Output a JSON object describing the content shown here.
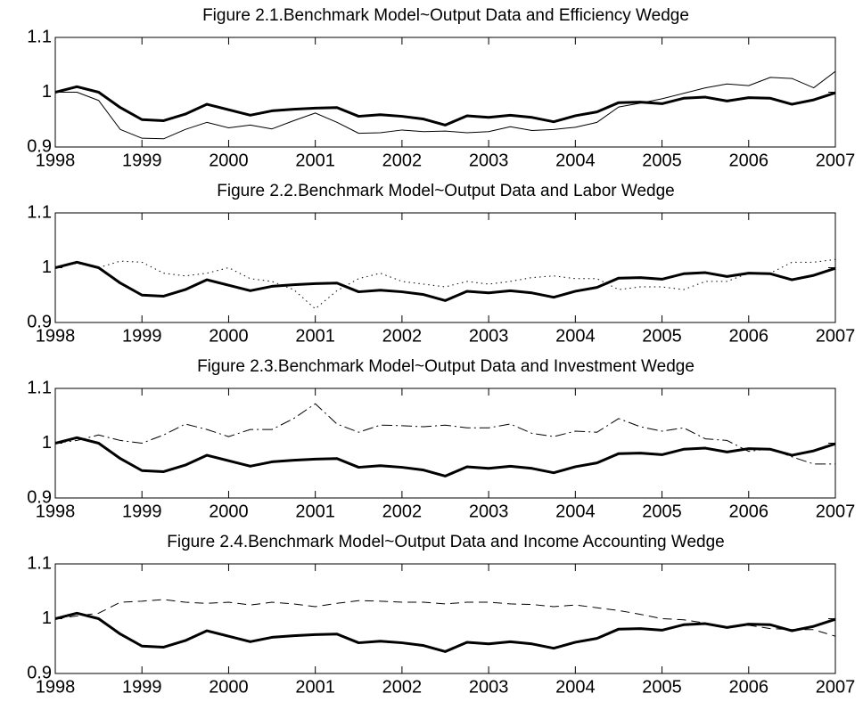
{
  "chart_data": [
    {
      "type": "line",
      "title": "Figure 2.1.Benchmark Model~Output Data and Efficiency Wedge",
      "x": [
        1998,
        1998.25,
        1998.5,
        1998.75,
        1999,
        1999.25,
        1999.5,
        1999.75,
        2000,
        2000.25,
        2000.5,
        2000.75,
        2001,
        2001.25,
        2001.5,
        2001.75,
        2002,
        2002.25,
        2002.5,
        2002.75,
        2003,
        2003.25,
        2003.5,
        2003.75,
        2004,
        2004.25,
        2004.5,
        2004.75,
        2005,
        2005.25,
        2005.5,
        2005.75,
        2006,
        2006.25,
        2006.5,
        2006.75,
        2007
      ],
      "xlim": [
        1998,
        2007
      ],
      "xticks": [
        1998,
        1999,
        2000,
        2001,
        2002,
        2003,
        2004,
        2005,
        2006,
        2007
      ],
      "ylim": [
        0.9,
        1.1
      ],
      "yticks": [
        0.9,
        1,
        1.1
      ],
      "series": [
        {
          "color": "#000000",
          "line_width": 3,
          "style": "solid",
          "values": [
            1.0,
            1.01,
            1.0,
            0.972,
            0.95,
            0.948,
            0.96,
            0.978,
            0.968,
            0.958,
            0.966,
            0.969,
            0.971,
            0.972,
            0.956,
            0.959,
            0.956,
            0.951,
            0.94,
            0.957,
            0.954,
            0.958,
            0.954,
            0.946,
            0.957,
            0.964,
            0.981,
            0.982,
            0.979,
            0.989,
            0.991,
            0.984,
            0.99,
            0.989,
            0.978,
            0.986,
            0.999
          ]
        },
        {
          "color": "#000000",
          "line_width": 1,
          "style": "solid",
          "values": [
            1.0,
            1.0,
            0.985,
            0.932,
            0.916,
            0.915,
            0.932,
            0.945,
            0.935,
            0.94,
            0.933,
            0.948,
            0.962,
            0.945,
            0.925,
            0.926,
            0.931,
            0.928,
            0.929,
            0.926,
            0.928,
            0.937,
            0.93,
            0.932,
            0.936,
            0.945,
            0.973,
            0.98,
            0.988,
            0.998,
            1.008,
            1.015,
            1.012,
            1.027,
            1.025,
            1.008,
            1.038
          ]
        }
      ]
    },
    {
      "type": "line",
      "title": "Figure 2.2.Benchmark Model~Output Data and Labor Wedge",
      "x": [
        1998,
        1998.25,
        1998.5,
        1998.75,
        1999,
        1999.25,
        1999.5,
        1999.75,
        2000,
        2000.25,
        2000.5,
        2000.75,
        2001,
        2001.25,
        2001.5,
        2001.75,
        2002,
        2002.25,
        2002.5,
        2002.75,
        2003,
        2003.25,
        2003.5,
        2003.75,
        2004,
        2004.25,
        2004.5,
        2004.75,
        2005,
        2005.25,
        2005.5,
        2005.75,
        2006,
        2006.25,
        2006.5,
        2006.75,
        2007
      ],
      "xlim": [
        1998,
        2007
      ],
      "xticks": [
        1998,
        1999,
        2000,
        2001,
        2002,
        2003,
        2004,
        2005,
        2006,
        2007
      ],
      "ylim": [
        0.9,
        1.1
      ],
      "yticks": [
        0.9,
        1,
        1.1
      ],
      "series": [
        {
          "color": "#000000",
          "line_width": 3,
          "style": "solid",
          "values": [
            1.0,
            1.01,
            1.0,
            0.972,
            0.95,
            0.948,
            0.96,
            0.978,
            0.968,
            0.958,
            0.966,
            0.969,
            0.971,
            0.972,
            0.956,
            0.959,
            0.956,
            0.951,
            0.94,
            0.957,
            0.954,
            0.958,
            0.954,
            0.946,
            0.957,
            0.964,
            0.981,
            0.982,
            0.979,
            0.989,
            0.991,
            0.984,
            0.99,
            0.989,
            0.978,
            0.986,
            0.999
          ]
        },
        {
          "color": "#000000",
          "line_width": 1,
          "style": "dotted",
          "values": [
            1.0,
            1.008,
            1.0,
            1.012,
            1.01,
            0.99,
            0.985,
            0.99,
            1.0,
            0.98,
            0.975,
            0.96,
            0.925,
            0.958,
            0.98,
            0.99,
            0.975,
            0.97,
            0.965,
            0.975,
            0.97,
            0.975,
            0.982,
            0.985,
            0.98,
            0.98,
            0.96,
            0.965,
            0.965,
            0.96,
            0.975,
            0.975,
            0.99,
            0.99,
            1.01,
            1.01,
            1.015
          ]
        }
      ]
    },
    {
      "type": "line",
      "title": "Figure 2.3.Benchmark Model~Output Data and Investment Wedge",
      "x": [
        1998,
        1998.25,
        1998.5,
        1998.75,
        1999,
        1999.25,
        1999.5,
        1999.75,
        2000,
        2000.25,
        2000.5,
        2000.75,
        2001,
        2001.25,
        2001.5,
        2001.75,
        2002,
        2002.25,
        2002.5,
        2002.75,
        2003,
        2003.25,
        2003.5,
        2003.75,
        2004,
        2004.25,
        2004.5,
        2004.75,
        2005,
        2005.25,
        2005.5,
        2005.75,
        2006,
        2006.25,
        2006.5,
        2006.75,
        2007
      ],
      "xlim": [
        1998,
        2007
      ],
      "xticks": [
        1998,
        1999,
        2000,
        2001,
        2002,
        2003,
        2004,
        2005,
        2006,
        2007
      ],
      "ylim": [
        0.9,
        1.1
      ],
      "yticks": [
        0.9,
        1,
        1.1
      ],
      "series": [
        {
          "color": "#000000",
          "line_width": 3,
          "style": "solid",
          "values": [
            1.0,
            1.01,
            1.0,
            0.972,
            0.95,
            0.948,
            0.96,
            0.978,
            0.968,
            0.958,
            0.966,
            0.969,
            0.971,
            0.972,
            0.956,
            0.959,
            0.956,
            0.951,
            0.94,
            0.957,
            0.954,
            0.958,
            0.954,
            0.946,
            0.957,
            0.964,
            0.981,
            0.982,
            0.979,
            0.989,
            0.991,
            0.984,
            0.99,
            0.989,
            0.978,
            0.986,
            0.999
          ]
        },
        {
          "color": "#000000",
          "line_width": 1,
          "style": "dashdot",
          "values": [
            1.0,
            1.005,
            1.015,
            1.005,
            1.0,
            1.015,
            1.035,
            1.025,
            1.012,
            1.025,
            1.025,
            1.045,
            1.072,
            1.035,
            1.02,
            1.033,
            1.032,
            1.03,
            1.033,
            1.028,
            1.028,
            1.035,
            1.018,
            1.012,
            1.022,
            1.02,
            1.045,
            1.03,
            1.022,
            1.028,
            1.008,
            1.005,
            0.985,
            0.99,
            0.975,
            0.962,
            0.962
          ]
        }
      ]
    },
    {
      "type": "line",
      "title": "Figure 2.4.Benchmark Model~Output Data and Income Accounting Wedge",
      "x": [
        1998,
        1998.25,
        1998.5,
        1998.75,
        1999,
        1999.25,
        1999.5,
        1999.75,
        2000,
        2000.25,
        2000.5,
        2000.75,
        2001,
        2001.25,
        2001.5,
        2001.75,
        2002,
        2002.25,
        2002.5,
        2002.75,
        2003,
        2003.25,
        2003.5,
        2003.75,
        2004,
        2004.25,
        2004.5,
        2004.75,
        2005,
        2005.25,
        2005.5,
        2005.75,
        2006,
        2006.25,
        2006.5,
        2006.75,
        2007
      ],
      "xlim": [
        1998,
        2007
      ],
      "xticks": [
        1998,
        1999,
        2000,
        2001,
        2002,
        2003,
        2004,
        2005,
        2006,
        2007
      ],
      "ylim": [
        0.9,
        1.1
      ],
      "yticks": [
        0.9,
        1,
        1.1
      ],
      "series": [
        {
          "color": "#000000",
          "line_width": 3,
          "style": "solid",
          "values": [
            1.0,
            1.01,
            1.0,
            0.972,
            0.95,
            0.948,
            0.96,
            0.978,
            0.968,
            0.958,
            0.966,
            0.969,
            0.971,
            0.972,
            0.956,
            0.959,
            0.956,
            0.951,
            0.94,
            0.957,
            0.954,
            0.958,
            0.954,
            0.946,
            0.957,
            0.964,
            0.981,
            0.982,
            0.979,
            0.989,
            0.991,
            0.984,
            0.99,
            0.989,
            0.978,
            0.986,
            0.999
          ]
        },
        {
          "color": "#000000",
          "line_width": 1,
          "style": "dashed",
          "values": [
            1.0,
            1.005,
            1.01,
            1.03,
            1.032,
            1.035,
            1.03,
            1.028,
            1.03,
            1.025,
            1.03,
            1.027,
            1.022,
            1.028,
            1.033,
            1.032,
            1.03,
            1.03,
            1.027,
            1.03,
            1.03,
            1.027,
            1.026,
            1.022,
            1.025,
            1.02,
            1.015,
            1.008,
            1.0,
            0.998,
            0.992,
            0.985,
            0.988,
            0.982,
            0.98,
            0.98,
            0.968
          ]
        }
      ]
    }
  ]
}
